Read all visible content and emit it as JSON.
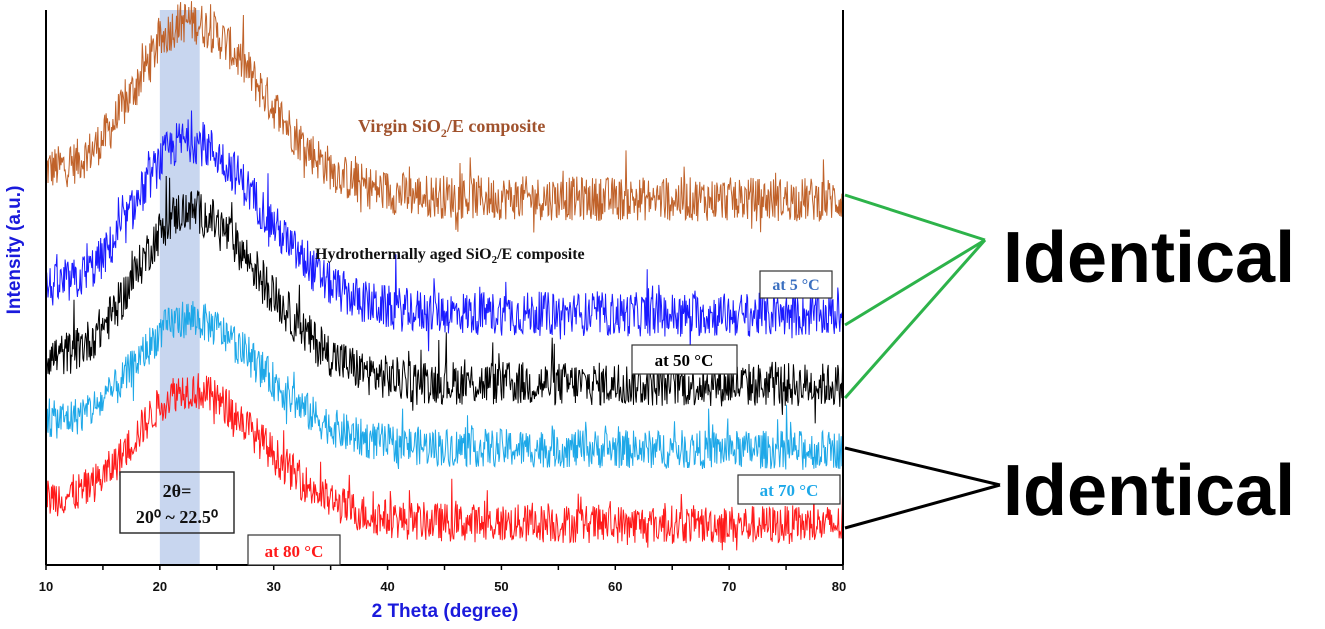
{
  "chart_data": {
    "type": "line",
    "xlabel": "2 Theta (degree)",
    "ylabel": "Intensity (a.u.)",
    "xlim": [
      10,
      80
    ],
    "ylim": [
      0,
      100
    ],
    "xticks": [
      10,
      20,
      30,
      40,
      50,
      60,
      70,
      80
    ],
    "grid": false,
    "highlight_band": {
      "x": [
        20,
        23.5
      ],
      "color": "#c8d6ef"
    },
    "peak_center": 22.5,
    "series": [
      {
        "name": "Virgin SiO2/E composite",
        "color": "#c0622a",
        "baseline": 65.8,
        "peak": 30,
        "left_tail": 5,
        "noise": 4
      },
      {
        "name": "at 5 °C",
        "color": "#1a1aff",
        "baseline": 45,
        "peak": 29.5,
        "left_tail": 4.5,
        "noise": 4
      },
      {
        "name": "at 50 °C",
        "color": "#000000",
        "baseline": 32.4,
        "peak": 29.5,
        "left_tail": 4.5,
        "noise": 4
      },
      {
        "name": "at 70 °C",
        "color": "#1ea8e8",
        "baseline": 20.7,
        "peak": 21.5,
        "left_tail": 5,
        "noise": 3.5
      },
      {
        "name": "at 80 °C",
        "color": "#ff1a1a",
        "baseline": 7.2,
        "peak": 22.5,
        "left_tail": 4.5,
        "noise": 3.5
      }
    ],
    "annotations": {
      "virgin": "Virgin SiO",
      "virgin_sub": "2",
      "virgin_rest": "/E composite",
      "aged": "Hydrothermally aged SiO",
      "aged_sub": "2",
      "aged_rest": "/E composite",
      "label_5": "at 5 °C",
      "label_50": "at 50 °C",
      "label_70": "at 70 °C",
      "label_80": "at 80 °C",
      "theta_line1": "2θ=",
      "theta_line2": "20⁰ ~ 22.5⁰",
      "identical_top": "Identical",
      "identical_bottom": "Identical"
    }
  }
}
